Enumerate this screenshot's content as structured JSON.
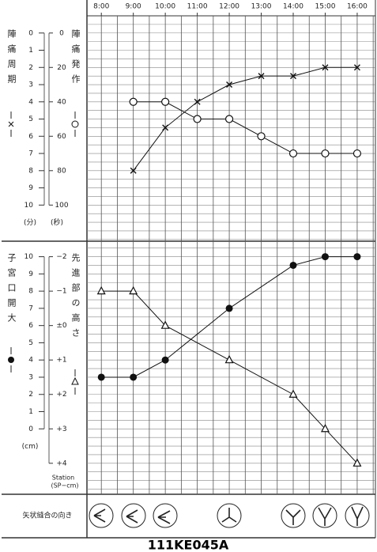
{
  "chart_data": [
    {
      "type": "line",
      "x": [
        8,
        9,
        10,
        11,
        12,
        13,
        14,
        15,
        16
      ],
      "xlim": [
        7.55,
        16.57
      ],
      "xticks": [
        {
          "value": 8,
          "label": "8:00"
        },
        {
          "value": 9,
          "label": "9:00"
        },
        {
          "value": 10,
          "label": "10:00"
        },
        {
          "value": 11,
          "label": "11:00"
        },
        {
          "value": 12,
          "label": "12:00"
        },
        {
          "value": 13,
          "label": "13:00"
        },
        {
          "value": 14,
          "label": "14:00"
        },
        {
          "value": 15,
          "label": "15:00"
        },
        {
          "value": 16,
          "label": "16:00"
        }
      ],
      "ylim": [
        12.1,
        -1
      ],
      "yticks": [
        0,
        1,
        2,
        3,
        4,
        5,
        6,
        7,
        8,
        9,
        10
      ],
      "ylabel": "(分)",
      "y2lim": [
        121,
        -10
      ],
      "y2ticks": [
        0,
        20,
        40,
        60,
        80,
        100
      ],
      "y2label": "(秒)",
      "grid": true,
      "grid_step": 0.5,
      "series": [
        {
          "name": "陣痛周期",
          "marker": "cross",
          "color": "#111",
          "values": [
            null,
            8,
            5.5,
            4,
            3,
            2.5,
            2.5,
            2,
            2
          ]
        },
        {
          "name": "陣痛発作",
          "marker": "open-circle",
          "color": "#111",
          "axis": "y2",
          "values": [
            null,
            40,
            40,
            50,
            50,
            60,
            70,
            70,
            70
          ]
        }
      ]
    },
    {
      "type": "line",
      "xlim": [
        7.55,
        16.57
      ],
      "ylim": [
        -3.8,
        10.9
      ],
      "yticks": [
        0,
        1,
        2,
        3,
        4,
        5,
        6,
        7,
        8,
        9,
        10
      ],
      "ylabel": "(cm)",
      "y2lim": [
        4.9,
        -2.45
      ],
      "y2ticks": [
        {
          "value": -2,
          "label": "−2"
        },
        {
          "value": -1,
          "label": "−1"
        },
        {
          "value": 0,
          "label": "±0"
        },
        {
          "value": 1,
          "label": "+1"
        },
        {
          "value": 2,
          "label": "+2"
        },
        {
          "value": 3,
          "label": "+3"
        },
        {
          "value": 4,
          "label": "+4"
        }
      ],
      "y2label": "Station",
      "y2label_sub": "(SP−cm)",
      "grid": true,
      "grid_step": 0.5,
      "series": [
        {
          "name": "子宮口開大",
          "marker": "filled-circle",
          "color": "#111",
          "x": [
            8,
            9,
            10,
            12,
            14,
            15,
            16
          ],
          "values": [
            3,
            3,
            4,
            7,
            9.5,
            10,
            10
          ]
        },
        {
          "name": "先進部の高さ",
          "marker": "triangle",
          "color": "#111",
          "axis": "y2",
          "x": [
            8,
            9,
            10,
            12,
            14,
            15,
            16
          ],
          "values": [
            -1,
            -1,
            0,
            1,
            2,
            3,
            4
          ]
        }
      ]
    }
  ],
  "suture": {
    "label": "矢状縫合の向き"
  },
  "footer": "111KE045A"
}
